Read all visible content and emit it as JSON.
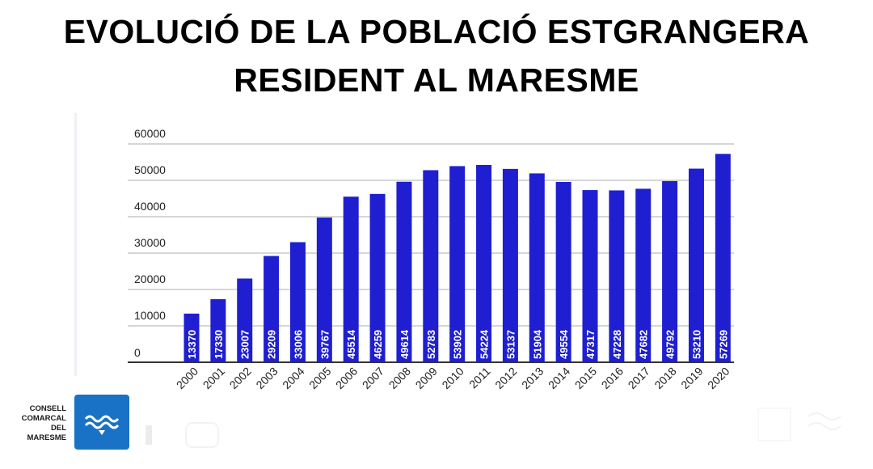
{
  "title": {
    "line1": "EVOLUCIÓ DE LA POBLACIÓ ESTGRANGERA",
    "line2": "RESIDENT AL MARESME"
  },
  "colors": {
    "bar": "#1f1fd1",
    "grid": "#c8c8c8",
    "axis": "#333333",
    "logo": "#1a72c6"
  },
  "logo": {
    "icon": "waves-emblem-icon",
    "lines": [
      "CONSELL",
      "COMARCAL",
      "DEL",
      "MARESME"
    ]
  },
  "chart_data": {
    "type": "bar",
    "title": "",
    "xlabel": "",
    "ylabel": "",
    "ylim": [
      0,
      60000
    ],
    "yticks": [
      "0",
      "10000",
      "20000",
      "30000",
      "40000",
      "50000",
      "60000"
    ],
    "grid": true,
    "categories": [
      "2000",
      "2001",
      "2002",
      "2003",
      "2004",
      "2005",
      "2006",
      "2007",
      "2008",
      "2009",
      "2010",
      "2011",
      "2012",
      "2013",
      "2014",
      "2015",
      "2016",
      "2017",
      "2018",
      "2019",
      "2020"
    ],
    "values": [
      13370,
      17330,
      23007,
      29209,
      33006,
      39767,
      45514,
      46259,
      49614,
      52783,
      53902,
      54224,
      53137,
      51904,
      49554,
      47317,
      47228,
      47682,
      49792,
      53210,
      57269
    ]
  }
}
